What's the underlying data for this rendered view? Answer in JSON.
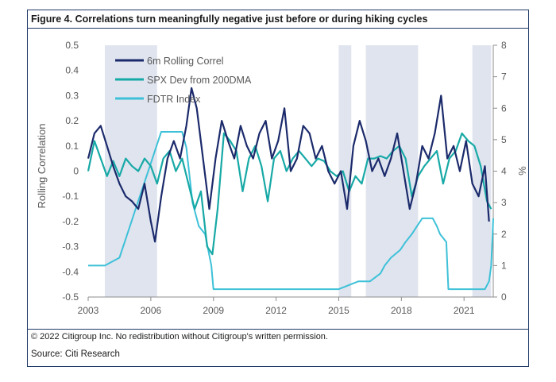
{
  "figure": {
    "title": "Figure 4. Correlations turn meaningfully negative just before or during hiking cycles",
    "copyright": "© 2022 Citigroup Inc. No redistribution without Citigroup's written permission.",
    "source": "Source: Citi Research"
  },
  "colors": {
    "frame": "#1f3a68",
    "shade": "#dfe4ef",
    "correl": "#1b2a6b",
    "spx": "#17a9a6",
    "fdtr": "#3ec1d8",
    "text": "#595959"
  },
  "chart_data": {
    "type": "line",
    "title": "Figure 4. Correlations turn meaningfully negative just before or during hiking cycles",
    "xlabel": "",
    "ylabel": "Rolling Correlation",
    "y2label": "%",
    "xlim": [
      2003,
      2022.4
    ],
    "ylim": [
      -0.5,
      0.5
    ],
    "y2lim": [
      0,
      8
    ],
    "x_ticks": [
      "2003",
      "2006",
      "2009",
      "2012",
      "2015",
      "2018",
      "2021"
    ],
    "x_tick_values": [
      2003,
      2006,
      2009,
      2012,
      2015,
      2018,
      2021
    ],
    "y_ticks": [
      "-0.5",
      "-0.4",
      "-0.3",
      "-0.2",
      "-0.1",
      "0",
      "0.1",
      "0.2",
      "0.3",
      "0.4",
      "0.5"
    ],
    "y_tick_values": [
      -0.5,
      -0.4,
      -0.3,
      -0.2,
      -0.1,
      0,
      0.1,
      0.2,
      0.3,
      0.4,
      0.5
    ],
    "y2_ticks": [
      "0",
      "1",
      "2",
      "3",
      "4",
      "5",
      "6",
      "7",
      "8"
    ],
    "y2_tick_values": [
      0,
      1,
      2,
      3,
      4,
      5,
      6,
      7,
      8
    ],
    "grid": false,
    "legend_position": "top-left",
    "shaded_periods": [
      [
        2003.8,
        2006.3
      ],
      [
        2015.0,
        2015.6
      ],
      [
        2016.3,
        2018.8
      ],
      [
        2021.4,
        2022.3
      ]
    ],
    "series": [
      {
        "name": "6m Rolling Correl",
        "axis": "left",
        "x": [
          2003.0,
          2003.3,
          2003.6,
          2003.9,
          2004.2,
          2004.5,
          2004.8,
          2005.1,
          2005.4,
          2005.7,
          2006.0,
          2006.2,
          2006.5,
          2006.8,
          2007.1,
          2007.4,
          2007.7,
          2007.95,
          2008.2,
          2008.5,
          2008.8,
          2009.1,
          2009.4,
          2009.7,
          2010.0,
          2010.3,
          2010.6,
          2010.9,
          2011.2,
          2011.5,
          2011.8,
          2012.1,
          2012.4,
          2012.7,
          2013.0,
          2013.3,
          2013.6,
          2013.9,
          2014.2,
          2014.5,
          2014.8,
          2015.1,
          2015.4,
          2015.7,
          2016.0,
          2016.3,
          2016.6,
          2016.9,
          2017.2,
          2017.5,
          2017.8,
          2018.1,
          2018.4,
          2018.7,
          2019.0,
          2019.3,
          2019.6,
          2019.9,
          2020.2,
          2020.5,
          2020.8,
          2021.1,
          2021.4,
          2021.7,
          2022.0,
          2022.2
        ],
        "y": [
          0.05,
          0.15,
          0.18,
          0.1,
          0.02,
          -0.05,
          -0.1,
          -0.12,
          -0.15,
          -0.05,
          -0.2,
          -0.28,
          -0.1,
          0.05,
          0.12,
          0.05,
          0.18,
          0.33,
          0.25,
          0.05,
          -0.15,
          0.05,
          0.2,
          0.12,
          0.05,
          0.18,
          0.1,
          0.05,
          0.15,
          0.2,
          0.05,
          0.12,
          0.25,
          0.0,
          0.05,
          0.18,
          0.15,
          0.05,
          0.1,
          0.0,
          -0.05,
          0.0,
          -0.15,
          0.1,
          0.2,
          0.12,
          0.0,
          0.05,
          -0.02,
          0.05,
          0.15,
          0.0,
          -0.15,
          -0.05,
          0.1,
          0.05,
          0.15,
          0.3,
          0.05,
          0.1,
          0.0,
          0.12,
          -0.05,
          -0.1,
          0.02,
          -0.2
        ]
      },
      {
        "name": "SPX Dev from 200DMA",
        "axis": "left",
        "x": [
          2003.0,
          2003.3,
          2003.6,
          2003.9,
          2004.2,
          2004.5,
          2004.8,
          2005.1,
          2005.4,
          2005.7,
          2006.0,
          2006.3,
          2006.6,
          2006.9,
          2007.2,
          2007.5,
          2007.8,
          2008.1,
          2008.4,
          2008.7,
          2008.95,
          2009.2,
          2009.5,
          2009.8,
          2010.1,
          2010.4,
          2010.7,
          2011.0,
          2011.3,
          2011.6,
          2011.9,
          2012.2,
          2012.5,
          2012.8,
          2013.1,
          2013.4,
          2013.7,
          2014.0,
          2014.3,
          2014.6,
          2014.9,
          2015.2,
          2015.5,
          2015.8,
          2016.1,
          2016.4,
          2016.7,
          2017.0,
          2017.3,
          2017.6,
          2017.9,
          2018.2,
          2018.5,
          2018.8,
          2019.1,
          2019.4,
          2019.7,
          2020.0,
          2020.3,
          2020.6,
          2020.9,
          2021.2,
          2021.5,
          2021.8,
          2022.1,
          2022.3
        ],
        "y": [
          0.0,
          0.12,
          0.05,
          -0.02,
          0.04,
          -0.02,
          0.05,
          0.02,
          0.0,
          0.05,
          0.02,
          -0.05,
          0.05,
          0.08,
          0.0,
          0.05,
          -0.05,
          -0.15,
          -0.08,
          -0.3,
          -0.33,
          -0.15,
          0.15,
          0.12,
          0.08,
          -0.08,
          0.05,
          0.1,
          0.02,
          -0.12,
          0.05,
          0.08,
          0.0,
          0.05,
          0.08,
          0.05,
          0.02,
          0.05,
          0.04,
          0.0,
          -0.02,
          0.0,
          -0.08,
          -0.02,
          -0.05,
          0.05,
          0.05,
          0.06,
          0.05,
          0.08,
          0.1,
          0.05,
          -0.1,
          -0.02,
          0.02,
          0.05,
          0.08,
          -0.05,
          0.05,
          0.08,
          0.15,
          0.12,
          0.1,
          0.02,
          -0.12,
          -0.15
        ]
      },
      {
        "name": "FDTR Index",
        "axis": "right",
        "x": [
          2003.0,
          2003.4,
          2003.8,
          2004.5,
          2004.75,
          2005.0,
          2005.25,
          2005.5,
          2005.75,
          2006.0,
          2006.25,
          2006.5,
          2007.0,
          2007.5,
          2007.7,
          2008.0,
          2008.3,
          2008.6,
          2008.9,
          2009.0,
          2010.0,
          2012.0,
          2014.0,
          2015.0,
          2015.95,
          2016.5,
          2017.0,
          2017.2,
          2017.5,
          2017.95,
          2018.2,
          2018.5,
          2018.75,
          2019.0,
          2019.5,
          2019.7,
          2019.85,
          2020.15,
          2020.25,
          2021.0,
          2022.0,
          2022.2,
          2022.3,
          2022.4
        ],
        "y": [
          1.0,
          1.0,
          1.0,
          1.25,
          1.75,
          2.25,
          2.75,
          3.25,
          3.75,
          4.25,
          4.75,
          5.25,
          5.25,
          5.25,
          4.75,
          3.0,
          2.25,
          2.0,
          1.0,
          0.25,
          0.25,
          0.25,
          0.25,
          0.25,
          0.5,
          0.5,
          0.75,
          1.0,
          1.25,
          1.5,
          1.75,
          2.0,
          2.25,
          2.5,
          2.5,
          2.25,
          2.0,
          1.75,
          0.25,
          0.25,
          0.25,
          0.5,
          1.0,
          2.5
        ]
      }
    ]
  }
}
